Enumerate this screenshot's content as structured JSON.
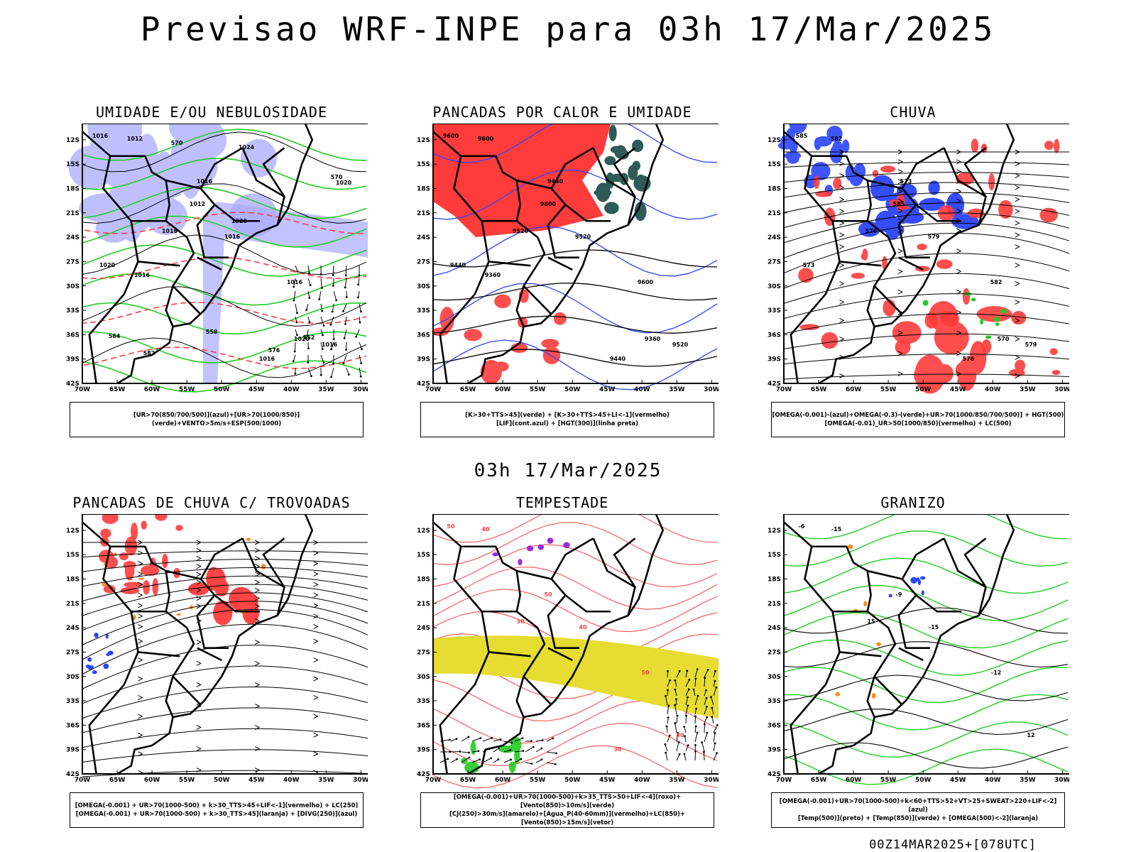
{
  "title": "Previsao WRF-INPE  para 03h 17/Mar/2025",
  "subtitle": "03h 17/Mar/2025",
  "footer": "00Z14MAR2025+[078UTC]",
  "colors": {
    "red": "#ff3b3b",
    "green": "#22cc22",
    "blue": "#2b44ff",
    "lavender": "#aaaaff",
    "yellow": "#e6dc32",
    "darkteal": "#2e5b55",
    "orange": "#ff8c1a",
    "purple": "#9b2bd9"
  },
  "axes": {
    "lat_labels": [
      "12S",
      "15S",
      "18S",
      "21S",
      "24S",
      "27S",
      "30S",
      "33S",
      "36S",
      "39S",
      "42S"
    ],
    "lon_labels": [
      "70W",
      "65W",
      "60W",
      "55W",
      "50W",
      "45W",
      "40W",
      "35W",
      "30W"
    ]
  },
  "panels": [
    {
      "title": "UMIDADE E/OU NEBULOSIDADE",
      "legend": [
        "[UR>70(850/700/500)](azul)+[UR>70(1000/850)](verde)+VENTO>5m/s+ESP(500/1000)"
      ],
      "contour_labels": [
        "1016",
        "1012",
        "1016",
        "1012",
        "1016",
        "1016",
        "1016",
        "1016",
        "1020",
        "1016",
        "1020",
        "1016",
        "1020",
        "570",
        "570",
        "576",
        "564",
        "558",
        "552",
        "582",
        "1024",
        "1020"
      ]
    },
    {
      "title": "PANCADAS POR CALOR E UMIDADE",
      "legend": [
        "[K>30+TTS>45](verde) + [K>30+TTS>45+LI<-1](vermelho)",
        "[LIF](cont.azul) + [HGT(300)](linha preta)"
      ],
      "contour_labels": [
        "9600",
        "9600",
        "9600",
        "9600",
        "9520",
        "9520",
        "9520",
        "9440",
        "9440",
        "9440",
        "9360",
        "9360"
      ]
    },
    {
      "title": "CHUVA",
      "legend": [
        "[OMEGA(-0.001)-(azul)+OMEGA(-0.3)-(verde)+UR>70(1000/850/700/500)] + HGT(500)",
        "[OMEGA(-0.01)_UR>50(1000/850)(vermelho) + LC(500)"
      ],
      "contour_labels": [
        "585",
        "585",
        "582",
        "582",
        "579",
        "579",
        "576",
        "576",
        "573",
        "573",
        "570"
      ]
    },
    {
      "title": "PANCADAS DE CHUVA C/ TROVOADAS",
      "legend": [
        "[OMEGA(-0.001) + UR>70(1000-500) + k>30_TTS>45+LIF<-1](vermelho) + LC(250)",
        "[OMEGA(-0.001) + UR>70(1000-500) + k>30_TTS>45](laranja) + [DIVG(250)](azul)"
      ],
      "contour_labels": []
    },
    {
      "title": "TEMPESTADE",
      "legend": [
        "[OMEGA(-0.001)+UR>70(1000-500)+k>35_TTS>50+LIF<-4](roxo)+[Vento(850)>10m/s](verde)",
        "[CJ(250)>30m/s](amarelo)+[Agua_P(40-60mm)](vermelho)+LC(850)+[Vento(850)>15m/s](vetor)"
      ],
      "contour_labels": [
        "50",
        "50",
        "50",
        "40",
        "40",
        "40",
        "30",
        "30"
      ]
    },
    {
      "title": "GRANIZO",
      "legend": [
        "[OMEGA(-0.001)+UR>70(1000-500)+k<60+TTS>52+VT>25+SWEAT>220+LIF<-2](azul)",
        "[Temp(500)](preto) + [Temp(850)](verde) + [OMEGA(500)<-2](laranja)"
      ],
      "contour_labels": [
        "-6",
        "-9",
        "-12",
        "-15",
        "-15",
        "12",
        "15"
      ]
    }
  ]
}
